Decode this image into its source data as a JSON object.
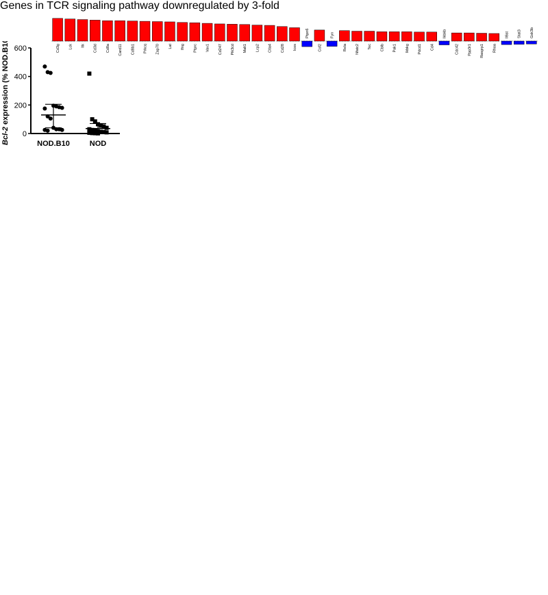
{
  "header": {
    "title": "Genes in TCR signaling pathway downregulated by 3-fold"
  },
  "chart_data": [
    {
      "type": "scatter",
      "ylabel_italic": "Bcl-2",
      "ylabel_rest": " expression (% NOD.B10)",
      "ylim": [
        0,
        600
      ],
      "yticks": [
        0,
        200,
        400,
        600
      ],
      "categories": [
        "NOD.B10",
        "NOD"
      ],
      "series": [
        {
          "name": "NOD.B10",
          "marker": "circle",
          "values": [
            470,
            430,
            425,
            195,
            190,
            185,
            180,
            175,
            120,
            105,
            40,
            30,
            30,
            25,
            25,
            20
          ],
          "mean": 130,
          "sd_low": 40,
          "sd_high": 205
        },
        {
          "name": "NOD",
          "marker": "square",
          "values": [
            420,
            100,
            85,
            65,
            55,
            50,
            40,
            30,
            25,
            20,
            15,
            12,
            10,
            8,
            5,
            3,
            2,
            1
          ],
          "mean": 35,
          "sd_low": 0,
          "sd_high": 70
        }
      ]
    },
    {
      "type": "bar",
      "categories": [
        "Cd3g",
        "Lck",
        "Itk",
        "Cd3d",
        "Cd8a",
        "Card11",
        "Cd8b1",
        "Prkcq",
        "Zap70",
        "Lat",
        "Ifng",
        "Ptprc",
        "Vav1",
        "Cd247",
        "Pik3cd",
        "Malt1",
        "Lcp2",
        "Ctla4",
        "Cd28",
        "Icos",
        "Ptpn6",
        "Cof2",
        "Fyn",
        "Rela",
        "Nfatc2",
        "Tec",
        "Cblb",
        "Pak1",
        "Ikbkg",
        "Pdcd1",
        "Cd4",
        "Ikbkb",
        "Cdc42",
        "Ppp3r1",
        "Rasgrp1",
        "Rhoa",
        "Il6st",
        "Stat3",
        "Gsk3b"
      ],
      "values": [
        3.9,
        3.8,
        3.7,
        3.6,
        3.5,
        3.5,
        3.45,
        3.4,
        3.35,
        3.3,
        3.2,
        3.15,
        3.05,
        2.95,
        2.9,
        2.85,
        2.75,
        2.7,
        2.5,
        2.3,
        -1.9,
        1.9,
        -1.8,
        1.8,
        1.7,
        1.7,
        1.6,
        1.6,
        1.6,
        1.55,
        1.55,
        -1.3,
        1.4,
        1.4,
        1.35,
        1.3,
        -1.2,
        -1.1,
        -1.0
      ],
      "up_color": "#ff0000",
      "down_color": "#0000ff",
      "yticks": [
        -4,
        -2,
        0,
        2
      ]
    }
  ]
}
